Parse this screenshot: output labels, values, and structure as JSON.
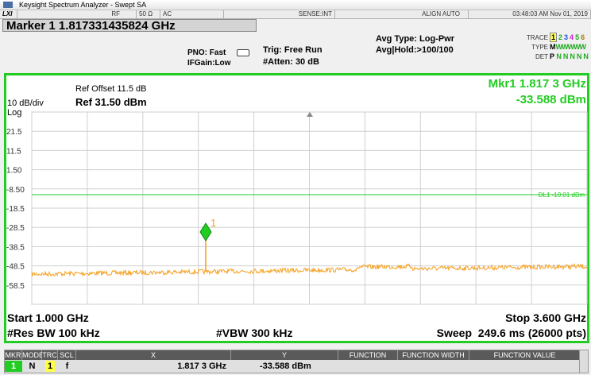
{
  "title_bar": {
    "title": "Keysight Spectrum Analyzer - Swept SA"
  },
  "status_bar": {
    "input": "RF",
    "impedance": "50 Ω",
    "coupling": "AC",
    "sense": "SENSE:INT",
    "align": "ALIGN AUTO",
    "datetime": "03:48:03 AM Nov 01, 2019"
  },
  "settings": {
    "marker": "Marker 1 1.817331435824 GHz",
    "pno": "PNO: Fast",
    "ifgain": "IFGain:Low",
    "trig": "Trig: Free Run",
    "atten": "#Atten: 30 dB",
    "avg_type": "Avg Type: Log-Pwr",
    "avg_hold": "Avg|Hold:>100/100",
    "trace": {
      "label": "TRACE",
      "items": [
        "1",
        "2",
        "3",
        "4",
        "5",
        "6"
      ]
    },
    "type": {
      "label": "TYPE",
      "items": [
        "M",
        "WWWWW"
      ]
    },
    "det": {
      "label": "DET",
      "items": [
        "P",
        "NNNNN"
      ]
    }
  },
  "display": {
    "ref_offset": "Ref Offset 11.5 dB",
    "scale": "10 dB/div",
    "ref_level": "Ref 31.50 dBm",
    "log": "Log",
    "marker_freq": "Mkr1 1.817 3 GHz",
    "marker_amp": "-33.588 dBm",
    "y_labels": [
      "21.5",
      "11.5",
      "1.50",
      "-8.50",
      "-18.5",
      "-28.5",
      "-38.5",
      "-48.5",
      "-58.5"
    ],
    "display_line": "DL1 -10.01 dBm",
    "marker_label": "1"
  },
  "footer": {
    "start": "Start 1.000 GHz",
    "stop": "Stop 3.600 GHz",
    "res_bw": "#Res BW 100 kHz",
    "vbw": "#VBW 300 kHz",
    "sweep": "Sweep  249.6 ms (26000 pts)"
  },
  "table": {
    "headers": [
      "MKR",
      "MODE",
      "TRC",
      "SCL",
      "X",
      "Y",
      "FUNCTION",
      "FUNCTION WIDTH",
      "FUNCTION VALUE"
    ],
    "rows": [
      [
        "1",
        "N",
        "1",
        "f",
        "1.817 3 GHz",
        "-33.588 dBm"
      ]
    ]
  }
}
